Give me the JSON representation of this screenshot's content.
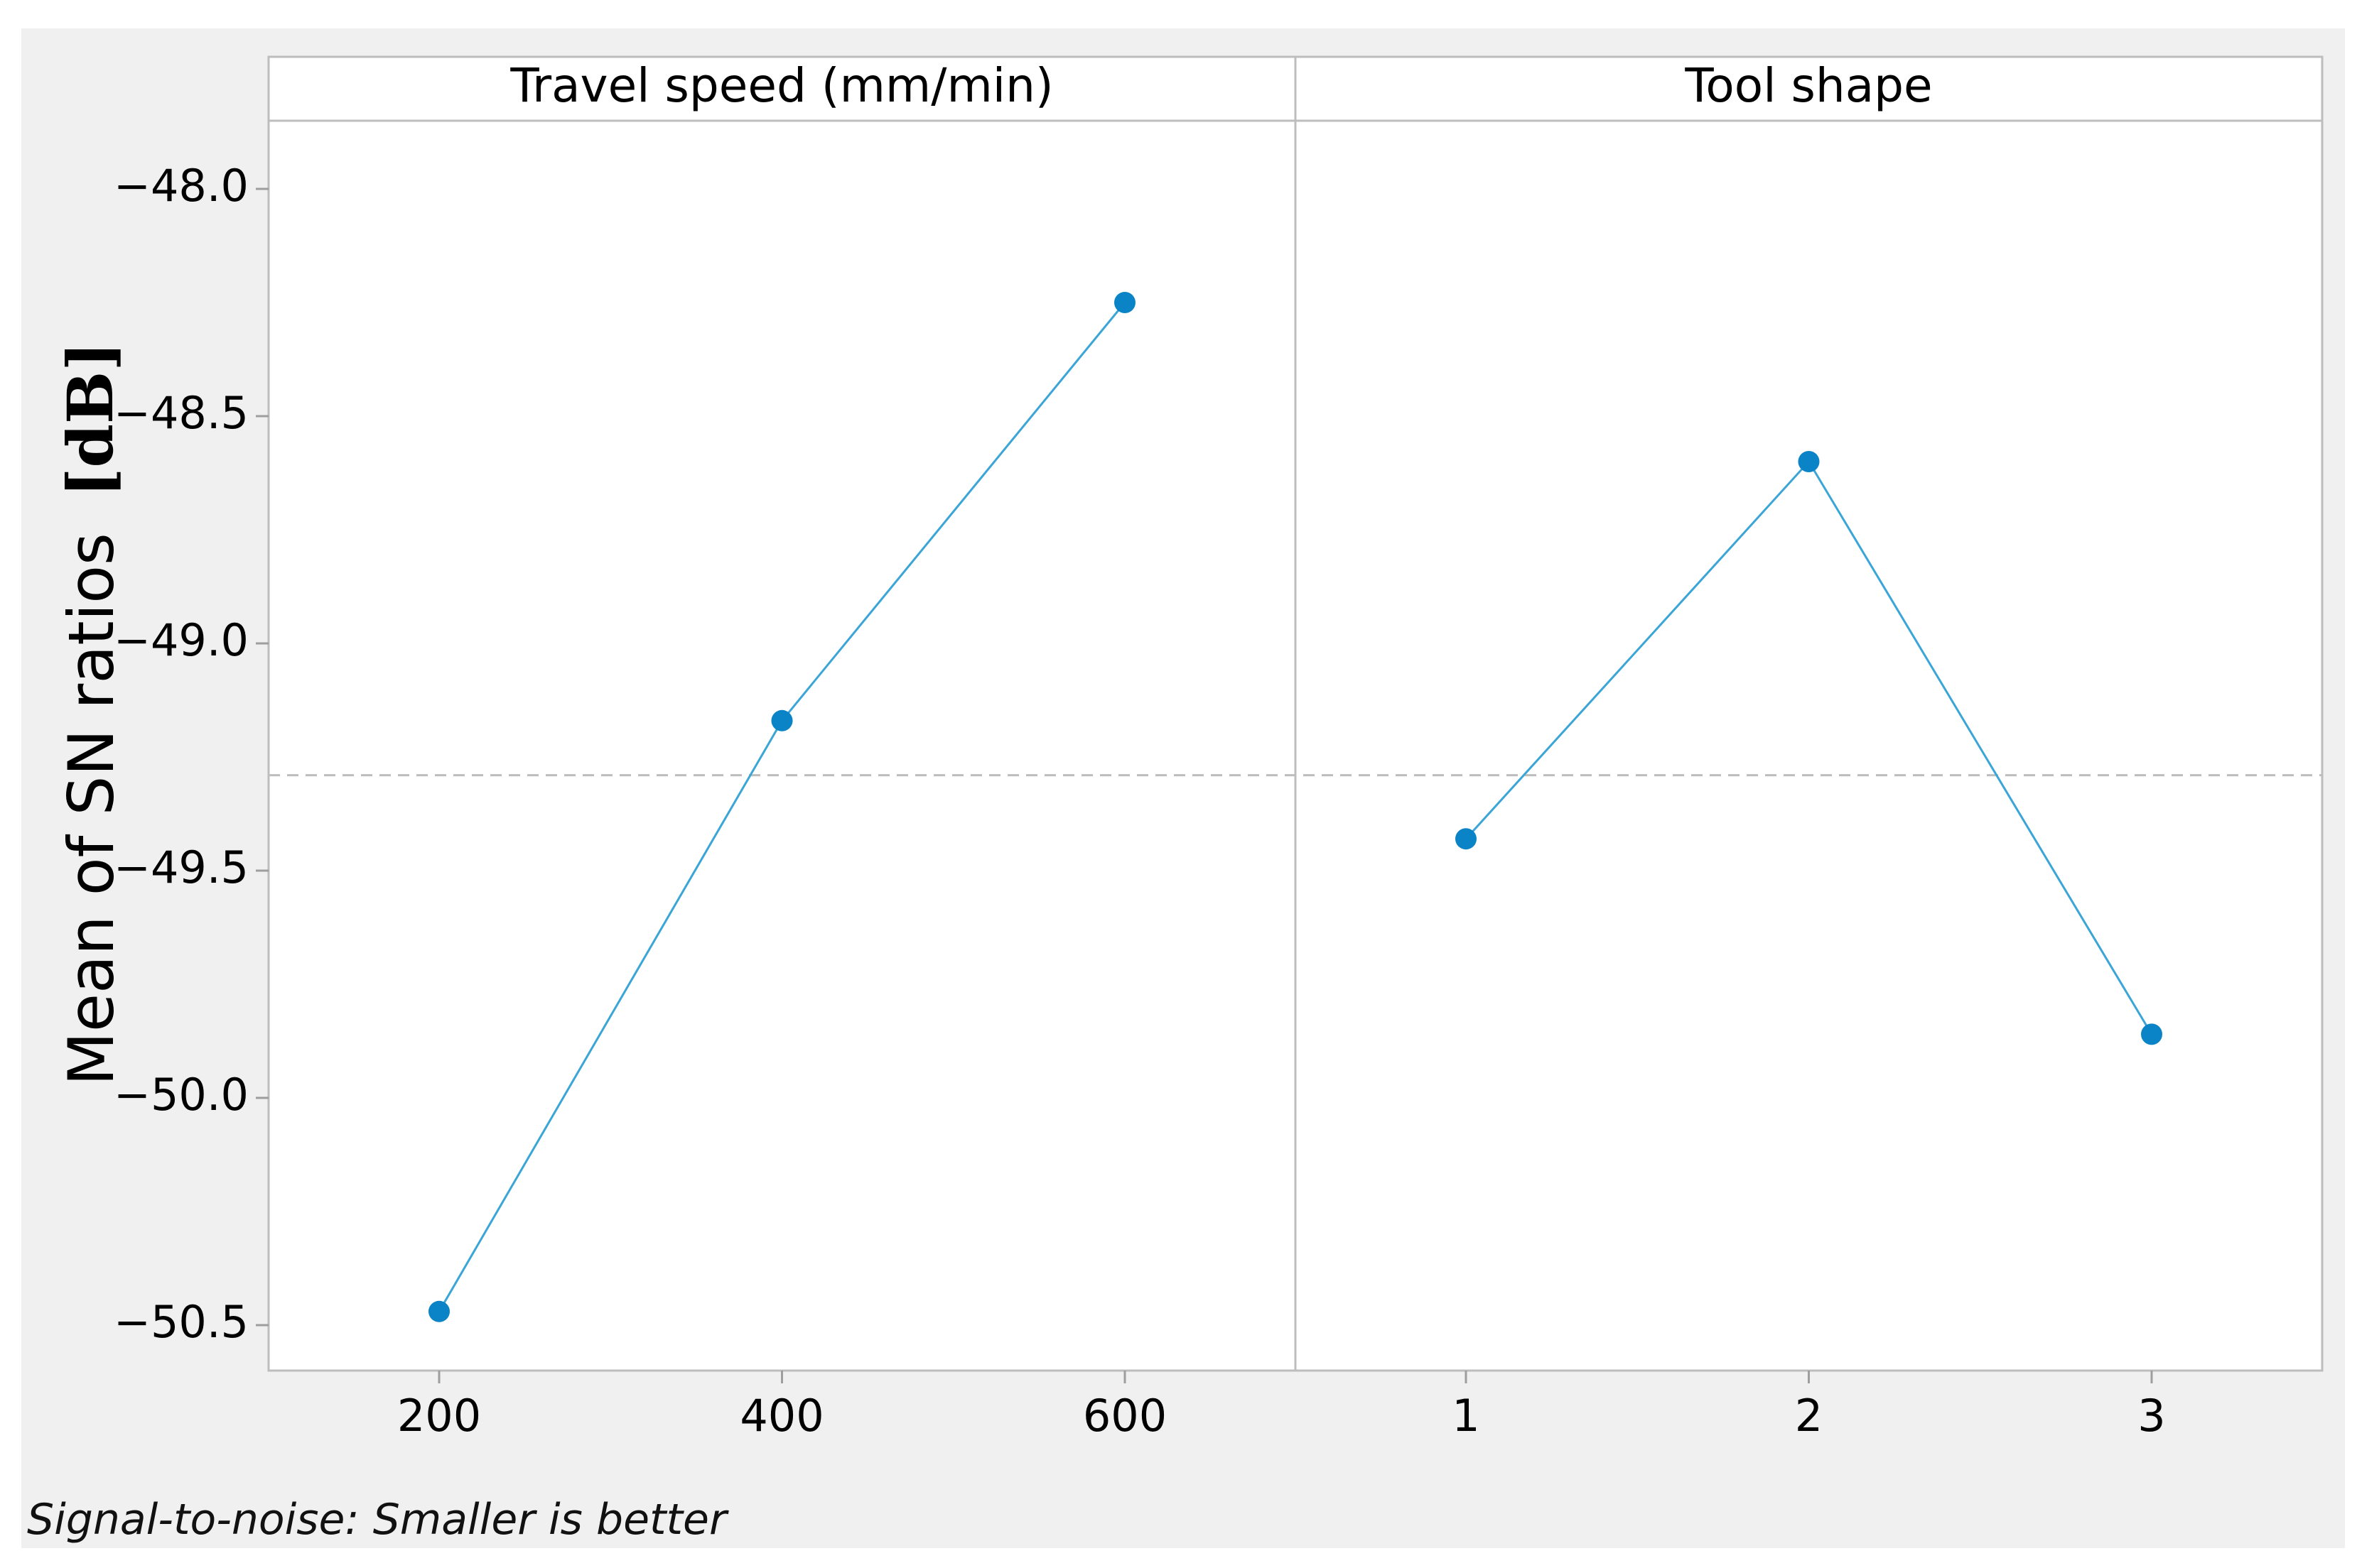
{
  "chart_data": {
    "type": "line",
    "title": "",
    "ylabel": "Mean of SN ratios",
    "ylabel_unit": "[dB]",
    "ylim": [
      -50.6,
      -47.85
    ],
    "yticks": [
      -48.0,
      -48.5,
      -49.0,
      -49.5,
      -50.0,
      -50.5
    ],
    "ytick_labels": [
      "−48.0",
      "−48.5",
      "−49.0",
      "−49.5",
      "−50.0",
      "−50.5"
    ],
    "grid": false,
    "reference_line": {
      "y": -49.29,
      "style": "dashed"
    },
    "line_color": "#3aa5d6",
    "marker_color": "#0a84c6",
    "frame_color": "#bdbdbd",
    "panels": [
      {
        "title": "Travel speed (mm/min)",
        "categories": [
          "200",
          "400",
          "600"
        ],
        "values": [
          -50.47,
          -49.17,
          -48.25
        ]
      },
      {
        "title": "Tool shape",
        "categories": [
          "1",
          "2",
          "3"
        ],
        "values": [
          -49.43,
          -48.6,
          -49.86
        ]
      }
    ],
    "footnote": "Signal-to-noise: Smaller is better"
  }
}
